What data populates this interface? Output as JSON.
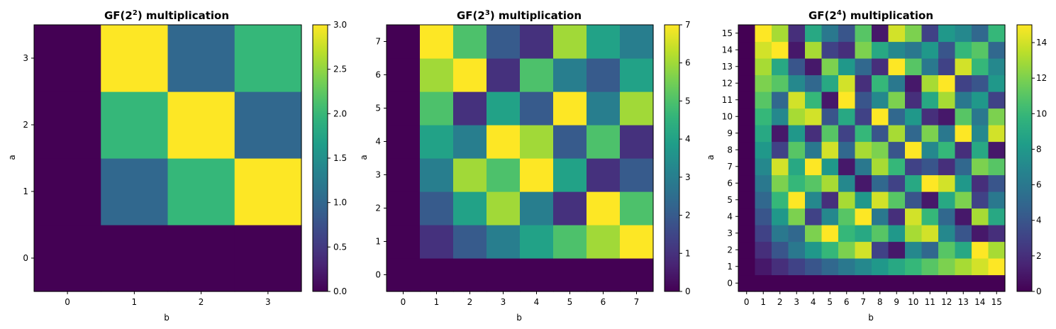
{
  "colormap": {
    "name": "viridis",
    "stops": [
      "#440154",
      "#482878",
      "#3e4989",
      "#31688e",
      "#26828e",
      "#1f9e89",
      "#35b779",
      "#6ece58",
      "#b5de2b",
      "#fde725"
    ]
  },
  "chart_data": [
    {
      "type": "heatmap",
      "title_prefix": "GF(2",
      "title_exp": "2",
      "title_suffix": ") multiplication",
      "xlabel": "b",
      "ylabel": "a",
      "x": [
        0,
        1,
        2,
        3
      ],
      "y": [
        0,
        1,
        2,
        3
      ],
      "values": [
        [
          0,
          0,
          0,
          0
        ],
        [
          0,
          1,
          2,
          3
        ],
        [
          0,
          2,
          3,
          1
        ],
        [
          0,
          3,
          1,
          2
        ]
      ],
      "vmin": 0,
      "vmax": 3,
      "colorbar_ticks": [
        "0.0",
        "0.5",
        "1.0",
        "1.5",
        "2.0",
        "2.5",
        "3.0"
      ]
    },
    {
      "type": "heatmap",
      "title_prefix": "GF(2",
      "title_exp": "3",
      "title_suffix": ") multiplication",
      "xlabel": "b",
      "ylabel": "a",
      "x": [
        0,
        1,
        2,
        3,
        4,
        5,
        6,
        7
      ],
      "y": [
        0,
        1,
        2,
        3,
        4,
        5,
        6,
        7
      ],
      "values": [
        [
          0,
          0,
          0,
          0,
          0,
          0,
          0,
          0
        ],
        [
          0,
          1,
          2,
          3,
          4,
          5,
          6,
          7
        ],
        [
          0,
          2,
          4,
          6,
          3,
          1,
          7,
          5
        ],
        [
          0,
          3,
          6,
          5,
          7,
          4,
          1,
          2
        ],
        [
          0,
          4,
          3,
          7,
          6,
          2,
          5,
          1
        ],
        [
          0,
          5,
          1,
          4,
          2,
          7,
          3,
          6
        ],
        [
          0,
          6,
          7,
          1,
          5,
          3,
          2,
          4
        ],
        [
          0,
          7,
          5,
          2,
          1,
          6,
          4,
          3
        ]
      ],
      "vmin": 0,
      "vmax": 7,
      "colorbar_ticks": [
        "0",
        "1",
        "2",
        "3",
        "4",
        "5",
        "6",
        "7"
      ]
    },
    {
      "type": "heatmap",
      "title_prefix": "GF(2",
      "title_exp": "4",
      "title_suffix": ") multiplication",
      "xlabel": "b",
      "ylabel": "a",
      "x": [
        0,
        1,
        2,
        3,
        4,
        5,
        6,
        7,
        8,
        9,
        10,
        11,
        12,
        13,
        14,
        15
      ],
      "y": [
        0,
        1,
        2,
        3,
        4,
        5,
        6,
        7,
        8,
        9,
        10,
        11,
        12,
        13,
        14,
        15
      ],
      "values": [
        [
          0,
          0,
          0,
          0,
          0,
          0,
          0,
          0,
          0,
          0,
          0,
          0,
          0,
          0,
          0,
          0
        ],
        [
          0,
          1,
          2,
          3,
          4,
          5,
          6,
          7,
          8,
          9,
          10,
          11,
          12,
          13,
          14,
          15
        ],
        [
          0,
          2,
          4,
          6,
          8,
          10,
          12,
          14,
          3,
          1,
          7,
          5,
          11,
          9,
          15,
          13
        ],
        [
          0,
          3,
          6,
          5,
          12,
          15,
          10,
          9,
          11,
          8,
          13,
          14,
          7,
          4,
          1,
          2
        ],
        [
          0,
          4,
          8,
          12,
          3,
          7,
          11,
          15,
          6,
          2,
          14,
          10,
          5,
          1,
          13,
          9
        ],
        [
          0,
          5,
          10,
          15,
          7,
          2,
          13,
          8,
          14,
          11,
          4,
          1,
          9,
          12,
          3,
          6
        ],
        [
          0,
          6,
          12,
          10,
          11,
          13,
          7,
          1,
          5,
          3,
          9,
          15,
          14,
          8,
          2,
          4
        ],
        [
          0,
          7,
          14,
          9,
          15,
          8,
          1,
          6,
          13,
          10,
          3,
          4,
          2,
          5,
          12,
          11
        ],
        [
          0,
          8,
          3,
          11,
          6,
          14,
          5,
          13,
          12,
          4,
          15,
          7,
          10,
          2,
          9,
          1
        ],
        [
          0,
          9,
          1,
          8,
          2,
          11,
          3,
          10,
          4,
          13,
          5,
          12,
          6,
          15,
          7,
          14
        ],
        [
          0,
          10,
          7,
          13,
          14,
          4,
          9,
          3,
          15,
          5,
          8,
          2,
          1,
          11,
          6,
          12
        ],
        [
          0,
          11,
          5,
          14,
          10,
          1,
          15,
          4,
          7,
          12,
          2,
          9,
          13,
          6,
          8,
          3
        ],
        [
          0,
          12,
          11,
          7,
          5,
          9,
          14,
          2,
          10,
          6,
          1,
          13,
          15,
          3,
          4,
          8
        ],
        [
          0,
          13,
          9,
          4,
          1,
          12,
          8,
          5,
          2,
          15,
          11,
          6,
          3,
          14,
          10,
          7
        ],
        [
          0,
          14,
          15,
          1,
          13,
          3,
          2,
          12,
          9,
          7,
          6,
          8,
          4,
          10,
          11,
          5
        ],
        [
          0,
          15,
          13,
          2,
          9,
          6,
          4,
          11,
          1,
          14,
          12,
          3,
          8,
          7,
          5,
          10
        ]
      ],
      "vmin": 0,
      "vmax": 15,
      "colorbar_ticks": [
        "0",
        "2",
        "4",
        "6",
        "8",
        "10",
        "12",
        "14"
      ]
    }
  ]
}
